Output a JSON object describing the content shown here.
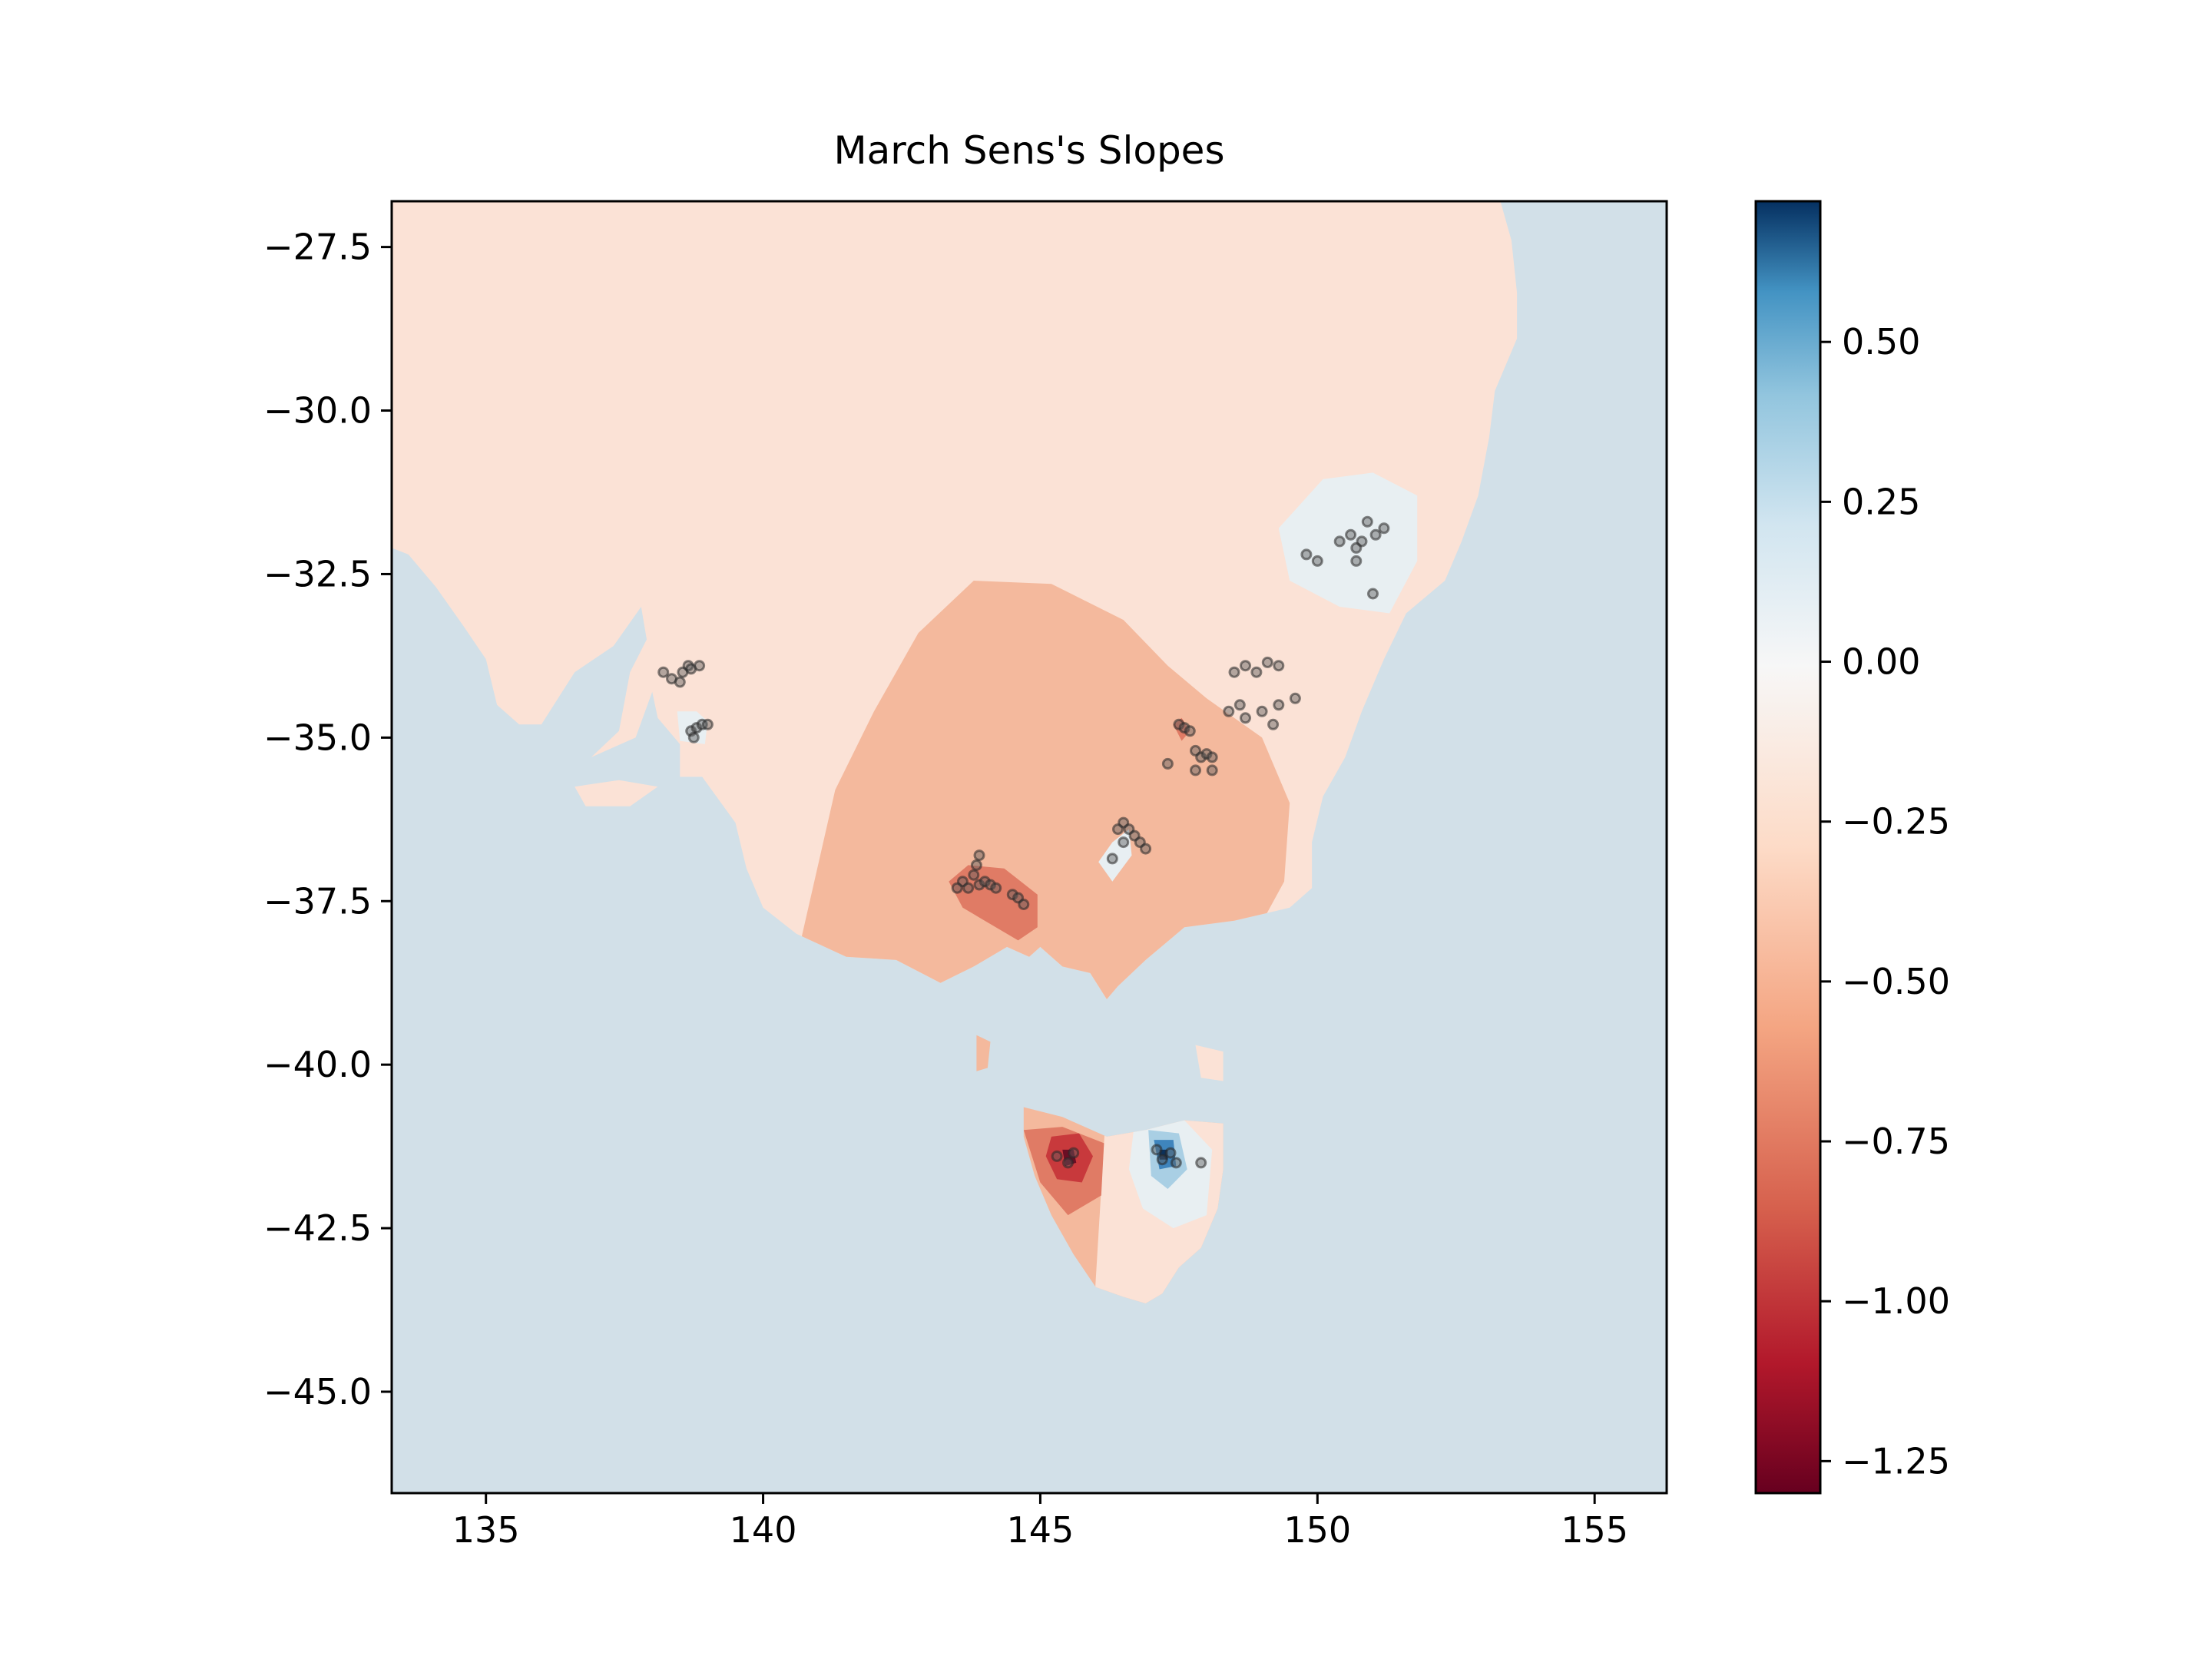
{
  "chart_data": {
    "type": "heatmap",
    "title": "March Sens's Slopes",
    "xlabel": "",
    "ylabel": "",
    "xlim": [
      133.3,
      156.3
    ],
    "ylim": [
      -46.55,
      -26.8
    ],
    "x_ticks": [
      {
        "value": 135,
        "label": "135"
      },
      {
        "value": 140,
        "label": "140"
      },
      {
        "value": 145,
        "label": "145"
      },
      {
        "value": 150,
        "label": "150"
      },
      {
        "value": 155,
        "label": "155"
      }
    ],
    "y_ticks": [
      {
        "value": -27.5,
        "label": "−27.5"
      },
      {
        "value": -30.0,
        "label": "−30.0"
      },
      {
        "value": -32.5,
        "label": "−32.5"
      },
      {
        "value": -35.0,
        "label": "−35.0"
      },
      {
        "value": -37.5,
        "label": "−37.5"
      },
      {
        "value": -40.0,
        "label": "−40.0"
      },
      {
        "value": -42.5,
        "label": "−42.5"
      },
      {
        "value": -45.0,
        "label": "−45.0"
      }
    ],
    "colorbar": {
      "cmap": "RdBu",
      "vmin": -1.3,
      "vmax": 0.72,
      "ticks": [
        {
          "value": 0.5,
          "label": "0.50"
        },
        {
          "value": 0.25,
          "label": "0.25"
        },
        {
          "value": 0.0,
          "label": "0.00"
        },
        {
          "value": -0.25,
          "label": "−0.25"
        },
        {
          "value": -0.5,
          "label": "−0.50"
        },
        {
          "value": -0.75,
          "label": "−0.75"
        },
        {
          "value": -1.0,
          "label": "−1.00"
        },
        {
          "value": -1.25,
          "label": "−1.25"
        }
      ]
    },
    "colors": {
      "ocean": "#d2e0e8",
      "level_m025": "#fbe2d6",
      "level_m050": "#f4b99d",
      "level_m075": "#e07b65",
      "level_m100": "#c8393c",
      "level_m125": "#6a0e24",
      "level_0": "#e8eff2",
      "level_025": "#a9cfe4",
      "level_050": "#3f85bd",
      "level_075": "#0b315c",
      "station": "#555555"
    },
    "stations": [
      [
        138.2,
        -34.0
      ],
      [
        138.35,
        -34.1
      ],
      [
        138.5,
        -34.15
      ],
      [
        138.55,
        -34.0
      ],
      [
        138.65,
        -33.9
      ],
      [
        138.7,
        -33.95
      ],
      [
        138.85,
        -33.9
      ],
      [
        138.7,
        -34.9
      ],
      [
        138.8,
        -34.85
      ],
      [
        138.9,
        -34.8
      ],
      [
        139.0,
        -34.8
      ],
      [
        138.75,
        -35.0
      ],
      [
        143.9,
        -36.8
      ],
      [
        143.85,
        -36.95
      ],
      [
        143.8,
        -37.1
      ],
      [
        143.6,
        -37.2
      ],
      [
        143.5,
        -37.3
      ],
      [
        143.7,
        -37.3
      ],
      [
        143.9,
        -37.25
      ],
      [
        144.0,
        -37.2
      ],
      [
        144.1,
        -37.25
      ],
      [
        144.2,
        -37.3
      ],
      [
        144.5,
        -37.4
      ],
      [
        144.6,
        -37.45
      ],
      [
        144.7,
        -37.55
      ],
      [
        147.5,
        -34.8
      ],
      [
        147.6,
        -34.85
      ],
      [
        147.7,
        -34.9
      ],
      [
        147.3,
        -35.4
      ],
      [
        147.8,
        -35.2
      ],
      [
        147.9,
        -35.3
      ],
      [
        148.0,
        -35.25
      ],
      [
        148.1,
        -35.3
      ],
      [
        147.8,
        -35.5
      ],
      [
        148.1,
        -35.5
      ],
      [
        146.5,
        -36.3
      ],
      [
        146.4,
        -36.4
      ],
      [
        146.6,
        -36.4
      ],
      [
        146.7,
        -36.5
      ],
      [
        146.5,
        -36.6
      ],
      [
        146.8,
        -36.6
      ],
      [
        146.9,
        -36.7
      ],
      [
        146.3,
        -36.85
      ],
      [
        148.5,
        -34.0
      ],
      [
        148.7,
        -33.9
      ],
      [
        148.9,
        -34.0
      ],
      [
        149.1,
        -33.85
      ],
      [
        149.3,
        -33.9
      ],
      [
        148.6,
        -34.5
      ],
      [
        148.4,
        -34.6
      ],
      [
        148.7,
        -34.7
      ],
      [
        149.0,
        -34.6
      ],
      [
        149.3,
        -34.5
      ],
      [
        149.6,
        -34.4
      ],
      [
        149.2,
        -34.8
      ],
      [
        149.8,
        -32.2
      ],
      [
        150.0,
        -32.3
      ],
      [
        150.4,
        -32.0
      ],
      [
        150.6,
        -31.9
      ],
      [
        150.8,
        -32.0
      ],
      [
        150.7,
        -32.1
      ],
      [
        150.9,
        -31.7
      ],
      [
        151.05,
        -31.9
      ],
      [
        151.2,
        -31.8
      ],
      [
        150.7,
        -32.3
      ],
      [
        151.0,
        -32.8
      ],
      [
        145.3,
        -41.4
      ],
      [
        145.5,
        -41.5
      ],
      [
        145.6,
        -41.35
      ],
      [
        147.1,
        -41.3
      ],
      [
        147.2,
        -41.45
      ],
      [
        147.35,
        -41.35
      ],
      [
        147.45,
        -41.5
      ],
      [
        147.9,
        -41.5
      ]
    ]
  }
}
